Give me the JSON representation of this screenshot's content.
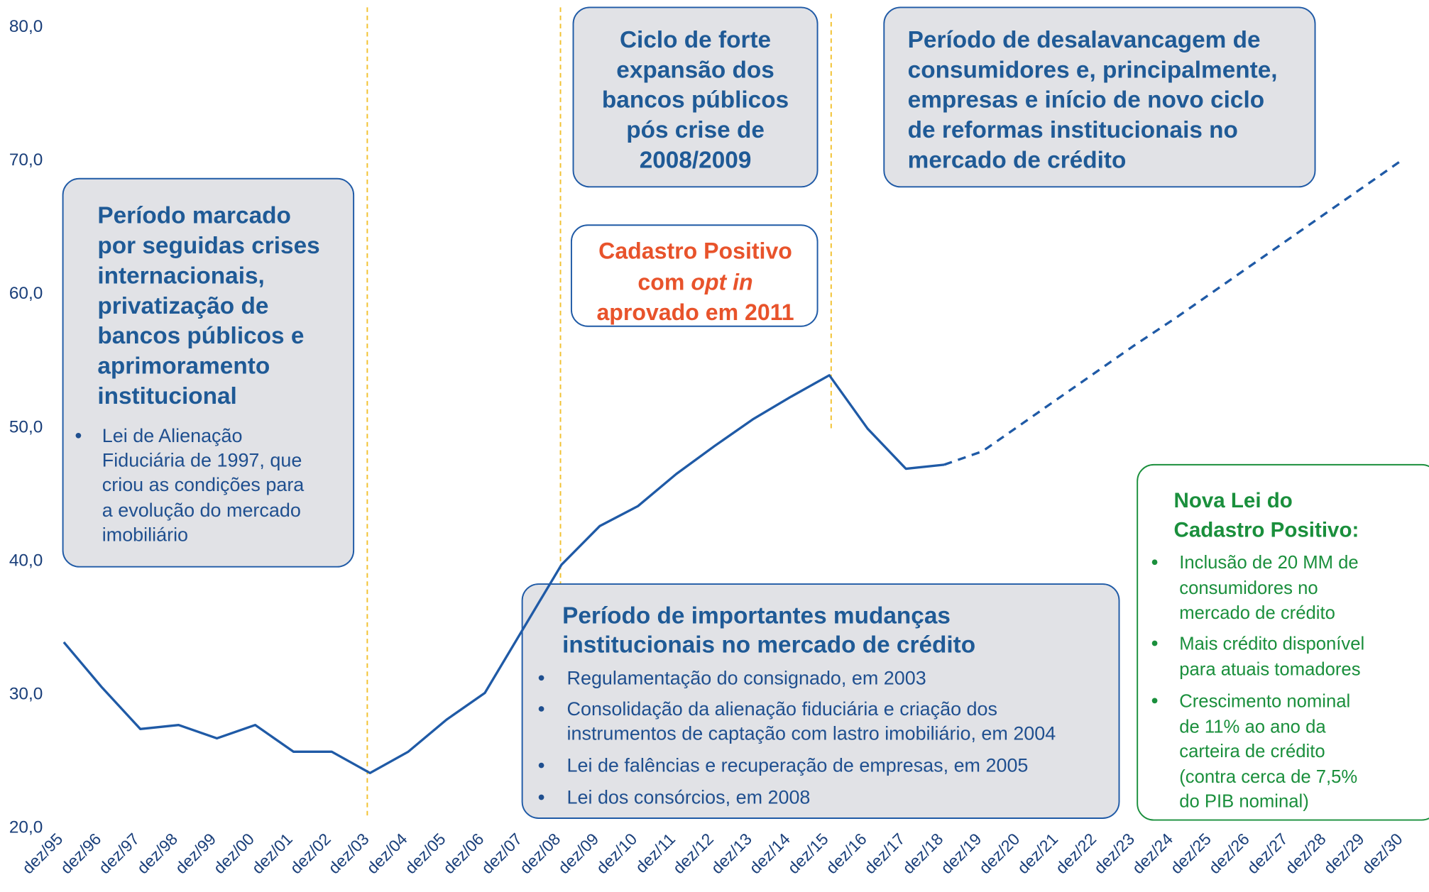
{
  "chart_data": {
    "type": "line",
    "categories": [
      "dez/95",
      "dez/96",
      "dez/97",
      "dez/98",
      "dez/99",
      "dez/00",
      "dez/01",
      "dez/02",
      "dez/03",
      "dez/04",
      "dez/05",
      "dez/06",
      "dez/07",
      "dez/08",
      "dez/09",
      "dez/10",
      "dez/11",
      "dez/12",
      "dez/13",
      "dez/14",
      "dez/15",
      "dez/16",
      "dez/17",
      "dez/18",
      "dez/19",
      "dez/20",
      "dez/21",
      "dez/22",
      "dez/23",
      "dez/24",
      "dez/25",
      "dez/26",
      "dez/27",
      "dez/28",
      "dez/29",
      "dez/30"
    ],
    "series": [
      {
        "color": "#1f5aa6",
        "dashed": false,
        "values": [
          33.8,
          30.4,
          27.3,
          27.6,
          26.6,
          27.6,
          25.6,
          25.6,
          24.0,
          25.6,
          28.0,
          30.0,
          34.8,
          39.6,
          42.5,
          44.0,
          46.4,
          48.5,
          50.5,
          52.2,
          53.8,
          49.8,
          46.8,
          47.1,
          null,
          null,
          null,
          null,
          null,
          null,
          null,
          null,
          null,
          null,
          null,
          null
        ]
      },
      {
        "color": "#1f5aa6",
        "dashed": true,
        "values": [
          null,
          null,
          null,
          null,
          null,
          null,
          null,
          null,
          null,
          null,
          null,
          null,
          null,
          null,
          null,
          null,
          null,
          null,
          null,
          null,
          null,
          null,
          null,
          47.1,
          48.1,
          50.1,
          52.1,
          54.1,
          56.1,
          58.0,
          60.0,
          62.0,
          64.0,
          66.0,
          68.0,
          70.0
        ]
      }
    ],
    "ylim": [
      20,
      80
    ],
    "yticks": [
      {
        "value": 20,
        "label": "20,0"
      },
      {
        "value": 30,
        "label": "30,0"
      },
      {
        "value": 40,
        "label": "40,0"
      },
      {
        "value": 50,
        "label": "50,0"
      },
      {
        "value": 60,
        "label": "60,0"
      },
      {
        "value": 70,
        "label": "70,0"
      },
      {
        "value": 80,
        "label": "80,0"
      }
    ],
    "grid": false,
    "annotations": [
      {
        "lines": [
          "Período marcado",
          "por seguidas crises",
          "internacionais,",
          "privatização de",
          "bancos públicos e",
          "aprimoramento",
          "institucional"
        ],
        "bullets": [
          [
            "Lei de Alienação",
            "Fiduciária de 1997, que",
            "criou as condições para",
            "a evolução do mercado",
            "imobiliário"
          ]
        ]
      },
      {
        "lines": [
          "Ciclo de forte",
          "expansão dos",
          "bancos públicos",
          "pós crise de",
          "2008/2009"
        ],
        "bullets": []
      },
      {
        "lines": [
          "Cadastro Positivo",
          [
            "com",
            "opt in"
          ],
          "aprovado em 2011"
        ],
        "bullets": []
      },
      {
        "lines": [
          "Período de desalavancagem de",
          "consumidores e, principalmente,",
          "empresas e início de novo ciclo",
          "de reformas institucionais no",
          "mercado de crédito"
        ],
        "bullets": []
      },
      {
        "lines": [
          "Período de importantes mudanças",
          "institucionais no mercado de crédito"
        ],
        "bullets": [
          [
            "Regulamentação do consignado, em 2003"
          ],
          [
            "Consolidação da alienação fiduciária e criação dos",
            "instrumentos de captação com lastro imobiliário, em 2004"
          ],
          [
            "Lei de falências e recuperação de empresas, em 2005"
          ],
          [
            "Lei dos consórcios, em 2008"
          ]
        ]
      },
      {
        "lines": [
          "Nova Lei do",
          "Cadastro Positivo:"
        ],
        "bullets": [
          [
            "Inclusão de 20 MM de",
            "consumidores no",
            "mercado de crédito"
          ],
          [
            "Mais crédito disponível",
            "para atuais tomadores"
          ],
          [
            "Crescimento nominal",
            "de 11% ao ano da",
            "carteira de crédito",
            "(contra cerca  de 7,5%",
            "do PIB nominal)"
          ]
        ]
      }
    ]
  }
}
